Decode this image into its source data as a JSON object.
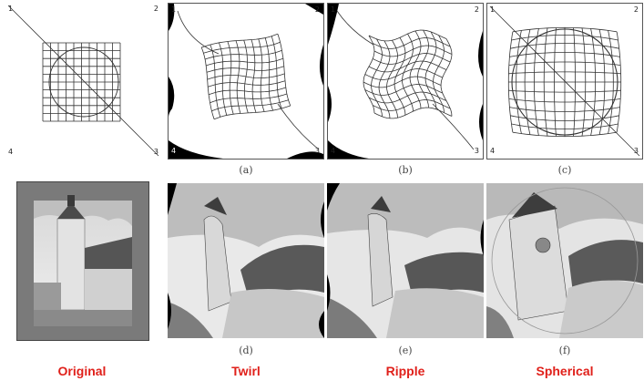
{
  "grids": [
    {
      "id": "original",
      "corners": [
        "1",
        "2",
        "4",
        "3"
      ]
    },
    {
      "id": "twirl",
      "corners": [
        "1",
        "2",
        "4",
        "3"
      ]
    },
    {
      "id": "ripple",
      "corners": [
        "1",
        "2",
        "4",
        "3"
      ]
    },
    {
      "id": "spherical",
      "corners": [
        "1",
        "2",
        "4",
        "3"
      ]
    }
  ],
  "captions": [
    "(a)",
    "(b)",
    "(c)",
    "(d)",
    "(e)",
    "(f)"
  ],
  "titles": [
    "Original",
    "Twirl",
    "Ripple",
    "Spherical"
  ],
  "colors": {
    "title": "#e0201a",
    "frame": "#555555",
    "photo_border": "#7a7a7a"
  }
}
